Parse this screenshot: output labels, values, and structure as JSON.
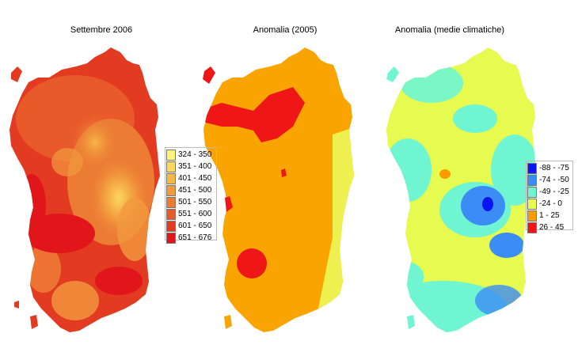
{
  "panels": [
    {
      "title": "Settembre 2006",
      "legend": [
        {
          "label": "324 - 350",
          "color": "#fff27a"
        },
        {
          "label": "351 - 400",
          "color": "#fcd75c"
        },
        {
          "label": "401 - 450",
          "color": "#f7b84a"
        },
        {
          "label": "451 - 500",
          "color": "#f19a3e"
        },
        {
          "label": "501 - 550",
          "color": "#ec7b34"
        },
        {
          "label": "551 - 600",
          "color": "#e85a2a"
        },
        {
          "label": "601 - 650",
          "color": "#e33a22"
        },
        {
          "label": "651 - 676",
          "color": "#e0161b"
        }
      ]
    },
    {
      "title": "Anomalia (2005)",
      "legend": []
    },
    {
      "title": "Anomalia (medie climatiche)",
      "legend": [
        {
          "label": "-88 - -75",
          "color": "#0a14f0"
        },
        {
          "label": "-74 - -50",
          "color": "#3c8cf5"
        },
        {
          "label": "-49 - -25",
          "color": "#6ff5d2"
        },
        {
          "label": "-24 - 0",
          "color": "#e6fa50"
        },
        {
          "label": "1 - 25",
          "color": "#fa9b00"
        },
        {
          "label": "26 - 45",
          "color": "#f01414"
        }
      ]
    }
  ]
}
